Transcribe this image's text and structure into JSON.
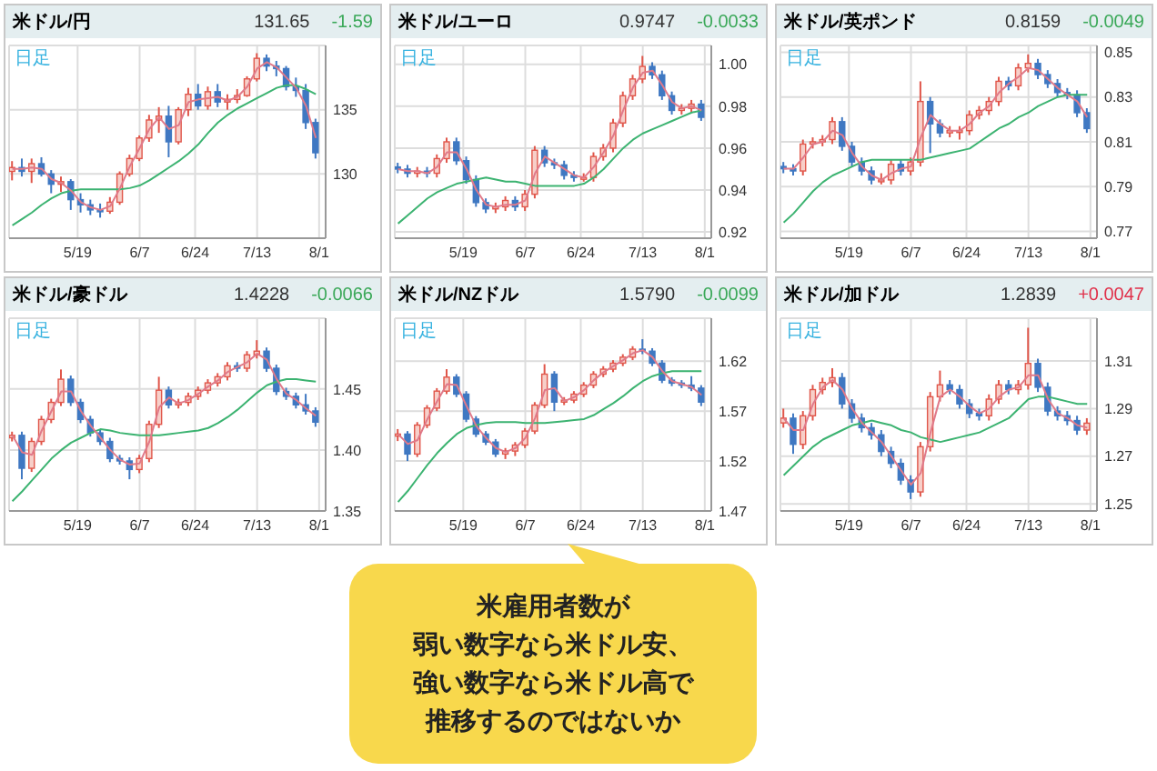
{
  "chart_data": [
    {
      "type": "candlestick",
      "title": "米ドル/円",
      "subtitle": "日足",
      "annotations": [
        "131.65",
        "-1.59"
      ],
      "grid": true,
      "x": [
        "--04-29",
        "--05-02",
        "--05-05",
        "--05-08",
        "--05-11",
        "--05-14",
        "--05-17",
        "--05-20",
        "--05-23",
        "--05-26",
        "--05-29",
        "--06-01",
        "--06-04",
        "--06-07",
        "--06-10",
        "--06-13",
        "--06-16",
        "--06-19",
        "--06-22",
        "--06-25",
        "--06-28",
        "--07-01",
        "--07-04",
        "--07-07",
        "--07-10",
        "--07-13",
        "--07-16",
        "--07-19",
        "--07-22",
        "--07-25",
        "--07-28",
        "--07-31"
      ],
      "xlim": [
        "--04-28",
        "--08-03"
      ],
      "xticks": [
        {
          "value": "--05-19",
          "label": "5/19"
        },
        {
          "value": "--06-07",
          "label": "6/7"
        },
        {
          "value": "--06-24",
          "label": "6/24"
        },
        {
          "value": "--07-13",
          "label": "7/13"
        },
        {
          "value": "--08-01",
          "label": "8/1"
        }
      ],
      "ylim": [
        125,
        140
      ],
      "yticks": [
        130,
        135
      ],
      "ohlc": [
        [
          130.2,
          131.0,
          129.5,
          130.5
        ],
        [
          130.5,
          131.2,
          129.8,
          130.2
        ],
        [
          130.2,
          131.2,
          129.3,
          130.8
        ],
        [
          130.8,
          131.3,
          129.8,
          130.0
        ],
        [
          130.0,
          130.3,
          128.5,
          129.2
        ],
        [
          129.2,
          129.8,
          128.6,
          129.4
        ],
        [
          129.4,
          129.6,
          127.2,
          128.0
        ],
        [
          128.0,
          128.5,
          127.0,
          127.6
        ],
        [
          127.6,
          128.0,
          126.8,
          127.2
        ],
        [
          127.2,
          127.7,
          126.6,
          127.1
        ],
        [
          127.1,
          128.2,
          126.9,
          127.8
        ],
        [
          127.8,
          130.2,
          127.6,
          130.0
        ],
        [
          130.0,
          131.5,
          129.8,
          131.2
        ],
        [
          131.2,
          133.0,
          131.0,
          132.8
        ],
        [
          132.8,
          134.6,
          132.5,
          134.2
        ],
        [
          134.2,
          135.2,
          133.2,
          134.5
        ],
        [
          134.5,
          135.3,
          131.3,
          132.5
        ],
        [
          132.5,
          135.2,
          132.3,
          135.0
        ],
        [
          135.0,
          136.7,
          134.5,
          136.2
        ],
        [
          136.2,
          137.0,
          135.0,
          135.3
        ],
        [
          135.3,
          136.8,
          135.0,
          136.4
        ],
        [
          136.4,
          137.0,
          135.2,
          135.6
        ],
        [
          135.6,
          136.2,
          135.0,
          135.8
        ],
        [
          135.8,
          136.6,
          135.5,
          136.1
        ],
        [
          136.1,
          137.6,
          136.0,
          137.4
        ],
        [
          137.4,
          139.4,
          137.2,
          139.0
        ],
        [
          139.0,
          139.3,
          138.0,
          138.4
        ],
        [
          138.4,
          138.8,
          137.6,
          138.2
        ],
        [
          138.2,
          138.4,
          136.5,
          136.8
        ],
        [
          136.8,
          137.5,
          136.0,
          136.5
        ],
        [
          136.5,
          137.0,
          133.5,
          134.0
        ],
        [
          134.0,
          134.3,
          131.2,
          131.65
        ]
      ],
      "series": [
        {
          "type": "line",
          "color": "#3cb371",
          "values": [
            126.0,
            126.5,
            127.0,
            127.6,
            128.1,
            128.5,
            128.7,
            128.8,
            128.8,
            128.8,
            128.8,
            128.8,
            128.9,
            129.1,
            129.5,
            130.0,
            130.5,
            131.0,
            131.6,
            132.3,
            133.2,
            134.0,
            134.6,
            135.1,
            135.5,
            135.9,
            136.3,
            136.7,
            136.9,
            136.9,
            136.6,
            136.2
          ]
        },
        {
          "type": "line",
          "color": "#e07a8a",
          "values": [
            130.4,
            130.4,
            130.5,
            130.4,
            129.6,
            129.3,
            128.7,
            127.8,
            127.4,
            127.2,
            127.5,
            128.9,
            130.6,
            132.0,
            133.5,
            134.4,
            133.5,
            133.8,
            135.6,
            135.8,
            135.9,
            136.0,
            135.7,
            136.0,
            136.8,
            138.2,
            138.7,
            138.3,
            137.5,
            136.7,
            135.3,
            132.8
          ]
        }
      ]
    },
    {
      "type": "candlestick",
      "title": "米ドル/ユーロ",
      "subtitle": "日足",
      "annotations": [
        "0.9747",
        "-0.0033"
      ],
      "grid": true,
      "x": [
        "--04-29",
        "--05-02",
        "--05-05",
        "--05-08",
        "--05-11",
        "--05-14",
        "--05-17",
        "--05-20",
        "--05-23",
        "--05-26",
        "--05-29",
        "--06-01",
        "--06-04",
        "--06-07",
        "--06-10",
        "--06-13",
        "--06-16",
        "--06-19",
        "--06-22",
        "--06-25",
        "--06-28",
        "--07-01",
        "--07-04",
        "--07-07",
        "--07-10",
        "--07-13",
        "--07-16",
        "--07-19",
        "--07-22",
        "--07-25",
        "--07-28",
        "--07-31"
      ],
      "xlim": [
        "--04-28",
        "--08-03"
      ],
      "xticks": [
        {
          "value": "--05-19",
          "label": "5/19"
        },
        {
          "value": "--06-07",
          "label": "6/7"
        },
        {
          "value": "--06-24",
          "label": "6/24"
        },
        {
          "value": "--07-13",
          "label": "7/13"
        },
        {
          "value": "--08-01",
          "label": "8/1"
        }
      ],
      "ylim": [
        0.917,
        1.009
      ],
      "yticks": [
        0.92,
        0.94,
        0.96,
        0.98,
        {
          "value": 1,
          "label": "1.00"
        }
      ],
      "ohlc": [
        [
          0.951,
          0.953,
          0.948,
          0.95
        ],
        [
          0.95,
          0.952,
          0.946,
          0.948
        ],
        [
          0.948,
          0.951,
          0.946,
          0.949
        ],
        [
          0.949,
          0.951,
          0.946,
          0.948
        ],
        [
          0.948,
          0.957,
          0.946,
          0.955
        ],
        [
          0.955,
          0.965,
          0.953,
          0.963
        ],
        [
          0.963,
          0.965,
          0.952,
          0.954
        ],
        [
          0.954,
          0.956,
          0.943,
          0.945
        ],
        [
          0.945,
          0.947,
          0.932,
          0.934
        ],
        [
          0.934,
          0.936,
          0.929,
          0.931
        ],
        [
          0.931,
          0.934,
          0.929,
          0.932
        ],
        [
          0.932,
          0.937,
          0.93,
          0.935
        ],
        [
          0.935,
          0.937,
          0.93,
          0.932
        ],
        [
          0.932,
          0.94,
          0.93,
          0.938
        ],
        [
          0.938,
          0.961,
          0.936,
          0.959
        ],
        [
          0.959,
          0.961,
          0.951,
          0.953
        ],
        [
          0.953,
          0.955,
          0.95,
          0.952
        ],
        [
          0.952,
          0.954,
          0.945,
          0.947
        ],
        [
          0.947,
          0.949,
          0.944,
          0.946
        ],
        [
          0.946,
          0.948,
          0.944,
          0.946
        ],
        [
          0.946,
          0.958,
          0.944,
          0.956
        ],
        [
          0.956,
          0.962,
          0.954,
          0.96
        ],
        [
          0.96,
          0.974,
          0.958,
          0.972
        ],
        [
          0.972,
          0.987,
          0.97,
          0.985
        ],
        [
          0.985,
          0.995,
          0.983,
          0.993
        ],
        [
          0.993,
          1.004,
          0.991,
          0.999
        ],
        [
          0.999,
          1.001,
          0.993,
          0.995
        ],
        [
          0.995,
          0.997,
          0.983,
          0.985
        ],
        [
          0.985,
          0.987,
          0.976,
          0.978
        ],
        [
          0.978,
          0.981,
          0.976,
          0.979
        ],
        [
          0.979,
          0.983,
          0.977,
          0.981
        ],
        [
          0.981,
          0.983,
          0.973,
          0.9747
        ]
      ],
      "series": [
        {
          "type": "line",
          "color": "#3cb371",
          "values": [
            0.924,
            0.928,
            0.932,
            0.936,
            0.939,
            0.941,
            0.943,
            0.944,
            0.945,
            0.946,
            0.945,
            0.944,
            0.944,
            0.943,
            0.942,
            0.942,
            0.942,
            0.942,
            0.942,
            0.943,
            0.946,
            0.95,
            0.955,
            0.96,
            0.964,
            0.967,
            0.969,
            0.971,
            0.973,
            0.975,
            0.977,
            0.978
          ]
        },
        {
          "type": "line",
          "color": "#e07a8a",
          "values": [
            0.95,
            0.949,
            0.949,
            0.948,
            0.951,
            0.958,
            0.958,
            0.95,
            0.94,
            0.933,
            0.932,
            0.933,
            0.933,
            0.935,
            0.948,
            0.956,
            0.953,
            0.95,
            0.947,
            0.946,
            0.951,
            0.958,
            0.966,
            0.978,
            0.989,
            0.996,
            0.997,
            0.99,
            0.982,
            0.979,
            0.98,
            0.978
          ]
        }
      ]
    },
    {
      "type": "candlestick",
      "title": "米ドル/英ポンド",
      "subtitle": "日足",
      "annotations": [
        "0.8159",
        "-0.0049"
      ],
      "grid": true,
      "x": [
        "--04-29",
        "--05-02",
        "--05-05",
        "--05-08",
        "--05-11",
        "--05-14",
        "--05-17",
        "--05-20",
        "--05-23",
        "--05-26",
        "--05-29",
        "--06-01",
        "--06-04",
        "--06-07",
        "--06-10",
        "--06-13",
        "--06-16",
        "--06-19",
        "--06-22",
        "--06-25",
        "--06-28",
        "--07-01",
        "--07-04",
        "--07-07",
        "--07-10",
        "--07-13",
        "--07-16",
        "--07-19",
        "--07-22",
        "--07-25",
        "--07-28",
        "--07-31"
      ],
      "xlim": [
        "--04-28",
        "--08-03"
      ],
      "xticks": [
        {
          "value": "--05-19",
          "label": "5/19"
        },
        {
          "value": "--06-07",
          "label": "6/7"
        },
        {
          "value": "--06-24",
          "label": "6/24"
        },
        {
          "value": "--07-13",
          "label": "7/13"
        },
        {
          "value": "--08-01",
          "label": "8/1"
        }
      ],
      "ylim": [
        0.767,
        0.853
      ],
      "yticks": [
        0.77,
        0.79,
        0.81,
        0.83,
        0.85
      ],
      "ohlc": [
        [
          0.799,
          0.801,
          0.796,
          0.798
        ],
        [
          0.798,
          0.8,
          0.795,
          0.797
        ],
        [
          0.797,
          0.811,
          0.795,
          0.809
        ],
        [
          0.809,
          0.812,
          0.807,
          0.81
        ],
        [
          0.81,
          0.813,
          0.808,
          0.811
        ],
        [
          0.811,
          0.821,
          0.809,
          0.819
        ],
        [
          0.819,
          0.821,
          0.806,
          0.808
        ],
        [
          0.808,
          0.81,
          0.799,
          0.801
        ],
        [
          0.801,
          0.803,
          0.795,
          0.797
        ],
        [
          0.797,
          0.799,
          0.791,
          0.793
        ],
        [
          0.793,
          0.796,
          0.791,
          0.793
        ],
        [
          0.793,
          0.802,
          0.791,
          0.8
        ],
        [
          0.8,
          0.802,
          0.795,
          0.797
        ],
        [
          0.797,
          0.803,
          0.795,
          0.801
        ],
        [
          0.801,
          0.837,
          0.799,
          0.828
        ],
        [
          0.828,
          0.83,
          0.805,
          0.818
        ],
        [
          0.818,
          0.82,
          0.812,
          0.814
        ],
        [
          0.814,
          0.817,
          0.812,
          0.815
        ],
        [
          0.815,
          0.817,
          0.811,
          0.815
        ],
        [
          0.815,
          0.824,
          0.813,
          0.822
        ],
        [
          0.822,
          0.826,
          0.82,
          0.824
        ],
        [
          0.824,
          0.83,
          0.822,
          0.828
        ],
        [
          0.828,
          0.839,
          0.826,
          0.837
        ],
        [
          0.837,
          0.839,
          0.833,
          0.835
        ],
        [
          0.835,
          0.845,
          0.833,
          0.843
        ],
        [
          0.843,
          0.849,
          0.841,
          0.845
        ],
        [
          0.845,
          0.847,
          0.838,
          0.84
        ],
        [
          0.84,
          0.842,
          0.834,
          0.836
        ],
        [
          0.836,
          0.838,
          0.83,
          0.832
        ],
        [
          0.832,
          0.834,
          0.829,
          0.831
        ],
        [
          0.831,
          0.833,
          0.821,
          0.823
        ],
        [
          0.823,
          0.825,
          0.814,
          0.8159
        ]
      ],
      "series": [
        {
          "type": "line",
          "color": "#3cb371",
          "values": [
            0.774,
            0.778,
            0.783,
            0.788,
            0.792,
            0.795,
            0.797,
            0.799,
            0.801,
            0.802,
            0.802,
            0.802,
            0.802,
            0.802,
            0.802,
            0.803,
            0.804,
            0.805,
            0.806,
            0.807,
            0.81,
            0.813,
            0.816,
            0.818,
            0.821,
            0.823,
            0.826,
            0.828,
            0.83,
            0.831,
            0.831,
            0.831
          ]
        },
        {
          "type": "line",
          "color": "#e07a8a",
          "values": [
            0.798,
            0.798,
            0.803,
            0.809,
            0.81,
            0.815,
            0.813,
            0.805,
            0.799,
            0.795,
            0.793,
            0.796,
            0.798,
            0.799,
            0.812,
            0.822,
            0.818,
            0.815,
            0.815,
            0.818,
            0.823,
            0.826,
            0.832,
            0.836,
            0.839,
            0.843,
            0.842,
            0.838,
            0.834,
            0.831,
            0.828,
            0.821
          ]
        }
      ]
    },
    {
      "type": "candlestick",
      "title": "米ドル/豪ドル",
      "subtitle": "日足",
      "annotations": [
        "1.4228",
        "-0.0066"
      ],
      "grid": true,
      "x": [
        "--04-29",
        "--05-02",
        "--05-05",
        "--05-08",
        "--05-11",
        "--05-14",
        "--05-17",
        "--05-20",
        "--05-23",
        "--05-26",
        "--05-29",
        "--06-01",
        "--06-04",
        "--06-07",
        "--06-10",
        "--06-13",
        "--06-16",
        "--06-19",
        "--06-22",
        "--06-25",
        "--06-28",
        "--07-01",
        "--07-04",
        "--07-07",
        "--07-10",
        "--07-13",
        "--07-16",
        "--07-19",
        "--07-22",
        "--07-25",
        "--07-28",
        "--07-31"
      ],
      "xlim": [
        "--04-28",
        "--08-03"
      ],
      "xticks": [
        {
          "value": "--05-19",
          "label": "5/19"
        },
        {
          "value": "--06-07",
          "label": "6/7"
        },
        {
          "value": "--06-24",
          "label": "6/24"
        },
        {
          "value": "--07-13",
          "label": "7/13"
        },
        {
          "value": "--08-01",
          "label": "8/1"
        }
      ],
      "ylim": [
        1.35,
        1.508
      ],
      "yticks": [
        1.35,
        {
          "value": 1.4,
          "label": "1.40"
        },
        1.45
      ],
      "ohlc": [
        [
          1.41,
          1.415,
          1.407,
          1.412
        ],
        [
          1.412,
          1.415,
          1.376,
          1.385
        ],
        [
          1.385,
          1.41,
          1.382,
          1.407
        ],
        [
          1.407,
          1.428,
          1.404,
          1.425
        ],
        [
          1.425,
          1.442,
          1.422,
          1.439
        ],
        [
          1.439,
          1.466,
          1.436,
          1.458
        ],
        [
          1.458,
          1.461,
          1.436,
          1.439
        ],
        [
          1.439,
          1.442,
          1.422,
          1.425
        ],
        [
          1.425,
          1.428,
          1.411,
          1.414
        ],
        [
          1.414,
          1.417,
          1.404,
          1.407
        ],
        [
          1.407,
          1.41,
          1.39,
          1.393
        ],
        [
          1.393,
          1.396,
          1.388,
          1.391
        ],
        [
          1.391,
          1.394,
          1.376,
          1.384
        ],
        [
          1.384,
          1.396,
          1.381,
          1.393
        ],
        [
          1.393,
          1.424,
          1.39,
          1.421
        ],
        [
          1.421,
          1.46,
          1.418,
          1.449
        ],
        [
          1.449,
          1.452,
          1.434,
          1.437
        ],
        [
          1.437,
          1.442,
          1.434,
          1.439
        ],
        [
          1.439,
          1.447,
          1.436,
          1.444
        ],
        [
          1.444,
          1.452,
          1.441,
          1.449
        ],
        [
          1.449,
          1.458,
          1.446,
          1.455
        ],
        [
          1.455,
          1.463,
          1.452,
          1.46
        ],
        [
          1.46,
          1.472,
          1.457,
          1.469
        ],
        [
          1.469,
          1.472,
          1.464,
          1.467
        ],
        [
          1.467,
          1.481,
          1.464,
          1.478
        ],
        [
          1.478,
          1.49,
          1.475,
          1.481
        ],
        [
          1.481,
          1.484,
          1.464,
          1.467
        ],
        [
          1.467,
          1.47,
          1.445,
          1.448
        ],
        [
          1.448,
          1.451,
          1.441,
          1.444
        ],
        [
          1.444,
          1.447,
          1.434,
          1.437
        ],
        [
          1.437,
          1.446,
          1.429,
          1.432
        ],
        [
          1.432,
          1.435,
          1.419,
          1.4228
        ]
      ],
      "series": [
        {
          "type": "line",
          "color": "#3cb371",
          "values": [
            1.358,
            1.366,
            1.375,
            1.384,
            1.393,
            1.4,
            1.406,
            1.41,
            1.414,
            1.417,
            1.416,
            1.414,
            1.413,
            1.412,
            1.412,
            1.412,
            1.413,
            1.414,
            1.415,
            1.416,
            1.418,
            1.422,
            1.427,
            1.433,
            1.44,
            1.447,
            1.453,
            1.456,
            1.458,
            1.458,
            1.457,
            1.456
          ]
        },
        {
          "type": "line",
          "color": "#e07a8a",
          "values": [
            1.412,
            1.398,
            1.396,
            1.416,
            1.432,
            1.448,
            1.448,
            1.432,
            1.42,
            1.41,
            1.4,
            1.392,
            1.388,
            1.389,
            1.407,
            1.435,
            1.443,
            1.438,
            1.441,
            1.446,
            1.452,
            1.457,
            1.464,
            1.468,
            1.472,
            1.479,
            1.474,
            1.458,
            1.446,
            1.441,
            1.434,
            1.428
          ]
        }
      ]
    },
    {
      "type": "candlestick",
      "title": "米ドル/NZドル",
      "subtitle": "日足",
      "annotations": [
        "1.5790",
        "-0.0099"
      ],
      "grid": true,
      "x": [
        "--04-29",
        "--05-02",
        "--05-05",
        "--05-08",
        "--05-11",
        "--05-14",
        "--05-17",
        "--05-20",
        "--05-23",
        "--05-26",
        "--05-29",
        "--06-01",
        "--06-04",
        "--06-07",
        "--06-10",
        "--06-13",
        "--06-16",
        "--06-19",
        "--06-22",
        "--06-25",
        "--06-28",
        "--07-01",
        "--07-04",
        "--07-07",
        "--07-10",
        "--07-13",
        "--07-16",
        "--07-19",
        "--07-22",
        "--07-25",
        "--07-28",
        "--07-31"
      ],
      "xlim": [
        "--04-28",
        "--08-03"
      ],
      "xticks": [
        {
          "value": "--05-19",
          "label": "5/19"
        },
        {
          "value": "--06-07",
          "label": "6/7"
        },
        {
          "value": "--06-24",
          "label": "6/24"
        },
        {
          "value": "--07-13",
          "label": "7/13"
        },
        {
          "value": "--08-01",
          "label": "8/1"
        }
      ],
      "ylim": [
        1.47,
        1.663
      ],
      "yticks": [
        1.47,
        1.52,
        1.57,
        1.62
      ],
      "ohlc": [
        [
          1.545,
          1.552,
          1.54,
          1.547
        ],
        [
          1.547,
          1.55,
          1.52,
          1.527
        ],
        [
          1.527,
          1.559,
          1.524,
          1.556
        ],
        [
          1.556,
          1.576,
          1.553,
          1.573
        ],
        [
          1.573,
          1.593,
          1.57,
          1.59
        ],
        [
          1.59,
          1.612,
          1.587,
          1.604
        ],
        [
          1.604,
          1.607,
          1.584,
          1.587
        ],
        [
          1.587,
          1.59,
          1.559,
          1.562
        ],
        [
          1.562,
          1.565,
          1.544,
          1.547
        ],
        [
          1.547,
          1.55,
          1.536,
          1.539
        ],
        [
          1.539,
          1.542,
          1.524,
          1.527
        ],
        [
          1.527,
          1.533,
          1.522,
          1.53
        ],
        [
          1.53,
          1.539,
          1.525,
          1.536
        ],
        [
          1.536,
          1.553,
          1.533,
          1.55
        ],
        [
          1.55,
          1.579,
          1.547,
          1.576
        ],
        [
          1.576,
          1.617,
          1.573,
          1.607
        ],
        [
          1.607,
          1.61,
          1.57,
          1.579
        ],
        [
          1.579,
          1.584,
          1.576,
          1.581
        ],
        [
          1.581,
          1.59,
          1.578,
          1.587
        ],
        [
          1.587,
          1.599,
          1.584,
          1.596
        ],
        [
          1.596,
          1.61,
          1.593,
          1.607
        ],
        [
          1.607,
          1.615,
          1.604,
          1.612
        ],
        [
          1.612,
          1.621,
          1.609,
          1.618
        ],
        [
          1.618,
          1.627,
          1.615,
          1.624
        ],
        [
          1.624,
          1.635,
          1.621,
          1.632
        ],
        [
          1.632,
          1.642,
          1.627,
          1.63
        ],
        [
          1.63,
          1.633,
          1.615,
          1.618
        ],
        [
          1.618,
          1.621,
          1.598,
          1.601
        ],
        [
          1.601,
          1.604,
          1.595,
          1.598
        ],
        [
          1.598,
          1.601,
          1.593,
          1.596
        ],
        [
          1.596,
          1.605,
          1.59,
          1.593
        ],
        [
          1.593,
          1.596,
          1.575,
          1.579
        ]
      ],
      "series": [
        {
          "type": "line",
          "color": "#3cb371",
          "values": [
            1.479,
            1.49,
            1.503,
            1.516,
            1.528,
            1.538,
            1.547,
            1.553,
            1.556,
            1.558,
            1.559,
            1.559,
            1.559,
            1.558,
            1.558,
            1.558,
            1.559,
            1.56,
            1.561,
            1.562,
            1.566,
            1.572,
            1.578,
            1.585,
            1.593,
            1.6,
            1.605,
            1.608,
            1.61,
            1.61,
            1.61,
            1.61
          ]
        },
        {
          "type": "line",
          "color": "#e07a8a",
          "values": [
            1.547,
            1.537,
            1.541,
            1.562,
            1.58,
            1.597,
            1.596,
            1.575,
            1.555,
            1.543,
            1.533,
            1.529,
            1.533,
            1.543,
            1.563,
            1.591,
            1.593,
            1.58,
            1.584,
            1.591,
            1.601,
            1.609,
            1.615,
            1.621,
            1.628,
            1.631,
            1.624,
            1.61,
            1.6,
            1.597,
            1.594,
            1.586
          ]
        }
      ]
    },
    {
      "type": "candlestick",
      "title": "米ドル/加ドル",
      "subtitle": "日足",
      "annotations": [
        "1.2839",
        "+0.0047"
      ],
      "grid": true,
      "x": [
        "--04-29",
        "--05-02",
        "--05-05",
        "--05-08",
        "--05-11",
        "--05-14",
        "--05-17",
        "--05-20",
        "--05-23",
        "--05-26",
        "--05-29",
        "--06-01",
        "--06-04",
        "--06-07",
        "--06-10",
        "--06-13",
        "--06-16",
        "--06-19",
        "--06-22",
        "--06-25",
        "--06-28",
        "--07-01",
        "--07-04",
        "--07-07",
        "--07-10",
        "--07-13",
        "--07-16",
        "--07-19",
        "--07-22",
        "--07-25",
        "--07-28",
        "--07-31"
      ],
      "xlim": [
        "--04-28",
        "--08-03"
      ],
      "xticks": [
        {
          "value": "--05-19",
          "label": "5/19"
        },
        {
          "value": "--06-07",
          "label": "6/7"
        },
        {
          "value": "--06-24",
          "label": "6/24"
        },
        {
          "value": "--07-13",
          "label": "7/13"
        },
        {
          "value": "--08-01",
          "label": "8/1"
        }
      ],
      "ylim": [
        1.247,
        1.328
      ],
      "yticks": [
        1.25,
        1.27,
        1.29,
        1.31
      ],
      "ohlc": [
        [
          1.284,
          1.29,
          1.282,
          1.286
        ],
        [
          1.286,
          1.288,
          1.271,
          1.275
        ],
        [
          1.275,
          1.289,
          1.273,
          1.287
        ],
        [
          1.287,
          1.3,
          1.285,
          1.298
        ],
        [
          1.298,
          1.303,
          1.296,
          1.301
        ],
        [
          1.301,
          1.307,
          1.299,
          1.303
        ],
        [
          1.303,
          1.305,
          1.29,
          1.292
        ],
        [
          1.292,
          1.294,
          1.284,
          1.286
        ],
        [
          1.286,
          1.288,
          1.28,
          1.282
        ],
        [
          1.282,
          1.284,
          1.277,
          1.279
        ],
        [
          1.279,
          1.281,
          1.27,
          1.272
        ],
        [
          1.272,
          1.274,
          1.265,
          1.267
        ],
        [
          1.267,
          1.269,
          1.258,
          1.26
        ],
        [
          1.26,
          1.262,
          1.252,
          1.255
        ],
        [
          1.255,
          1.276,
          1.253,
          1.274
        ],
        [
          1.274,
          1.297,
          1.272,
          1.295
        ],
        [
          1.295,
          1.306,
          1.293,
          1.3
        ],
        [
          1.3,
          1.302,
          1.296,
          1.298
        ],
        [
          1.298,
          1.3,
          1.29,
          1.292
        ],
        [
          1.292,
          1.294,
          1.286,
          1.288
        ],
        [
          1.288,
          1.29,
          1.285,
          1.287
        ],
        [
          1.287,
          1.296,
          1.285,
          1.294
        ],
        [
          1.294,
          1.302,
          1.292,
          1.3
        ],
        [
          1.3,
          1.302,
          1.296,
          1.298
        ],
        [
          1.298,
          1.302,
          1.296,
          1.3
        ],
        [
          1.3,
          1.324,
          1.298,
          1.309
        ],
        [
          1.309,
          1.311,
          1.297,
          1.299
        ],
        [
          1.299,
          1.301,
          1.287,
          1.289
        ],
        [
          1.289,
          1.291,
          1.285,
          1.287
        ],
        [
          1.287,
          1.289,
          1.283,
          1.285
        ],
        [
          1.285,
          1.287,
          1.279,
          1.281
        ],
        [
          1.281,
          1.286,
          1.279,
          1.2839
        ]
      ],
      "series": [
        {
          "type": "line",
          "color": "#3cb371",
          "values": [
            1.262,
            1.266,
            1.27,
            1.274,
            1.277,
            1.279,
            1.281,
            1.283,
            1.284,
            1.285,
            1.284,
            1.283,
            1.281,
            1.28,
            1.278,
            1.277,
            1.276,
            1.277,
            1.278,
            1.279,
            1.28,
            1.282,
            1.284,
            1.286,
            1.29,
            1.294,
            1.295,
            1.295,
            1.294,
            1.293,
            1.292,
            1.292
          ]
        },
        {
          "type": "line",
          "color": "#e07a8a",
          "values": [
            1.286,
            1.281,
            1.281,
            1.292,
            1.299,
            1.302,
            1.298,
            1.29,
            1.284,
            1.28,
            1.276,
            1.27,
            1.264,
            1.258,
            1.263,
            1.28,
            1.295,
            1.298,
            1.295,
            1.291,
            1.288,
            1.29,
            1.295,
            1.298,
            1.299,
            1.304,
            1.304,
            1.294,
            1.288,
            1.286,
            1.283,
            1.282
          ]
        }
      ]
    },
    {
      "type": "other",
      "annotations": [
        "米雇用者数が",
        "弱い数字なら米ドル安、",
        "強い数字なら米ドル高で",
        "推移するのではないか"
      ]
    }
  ]
}
